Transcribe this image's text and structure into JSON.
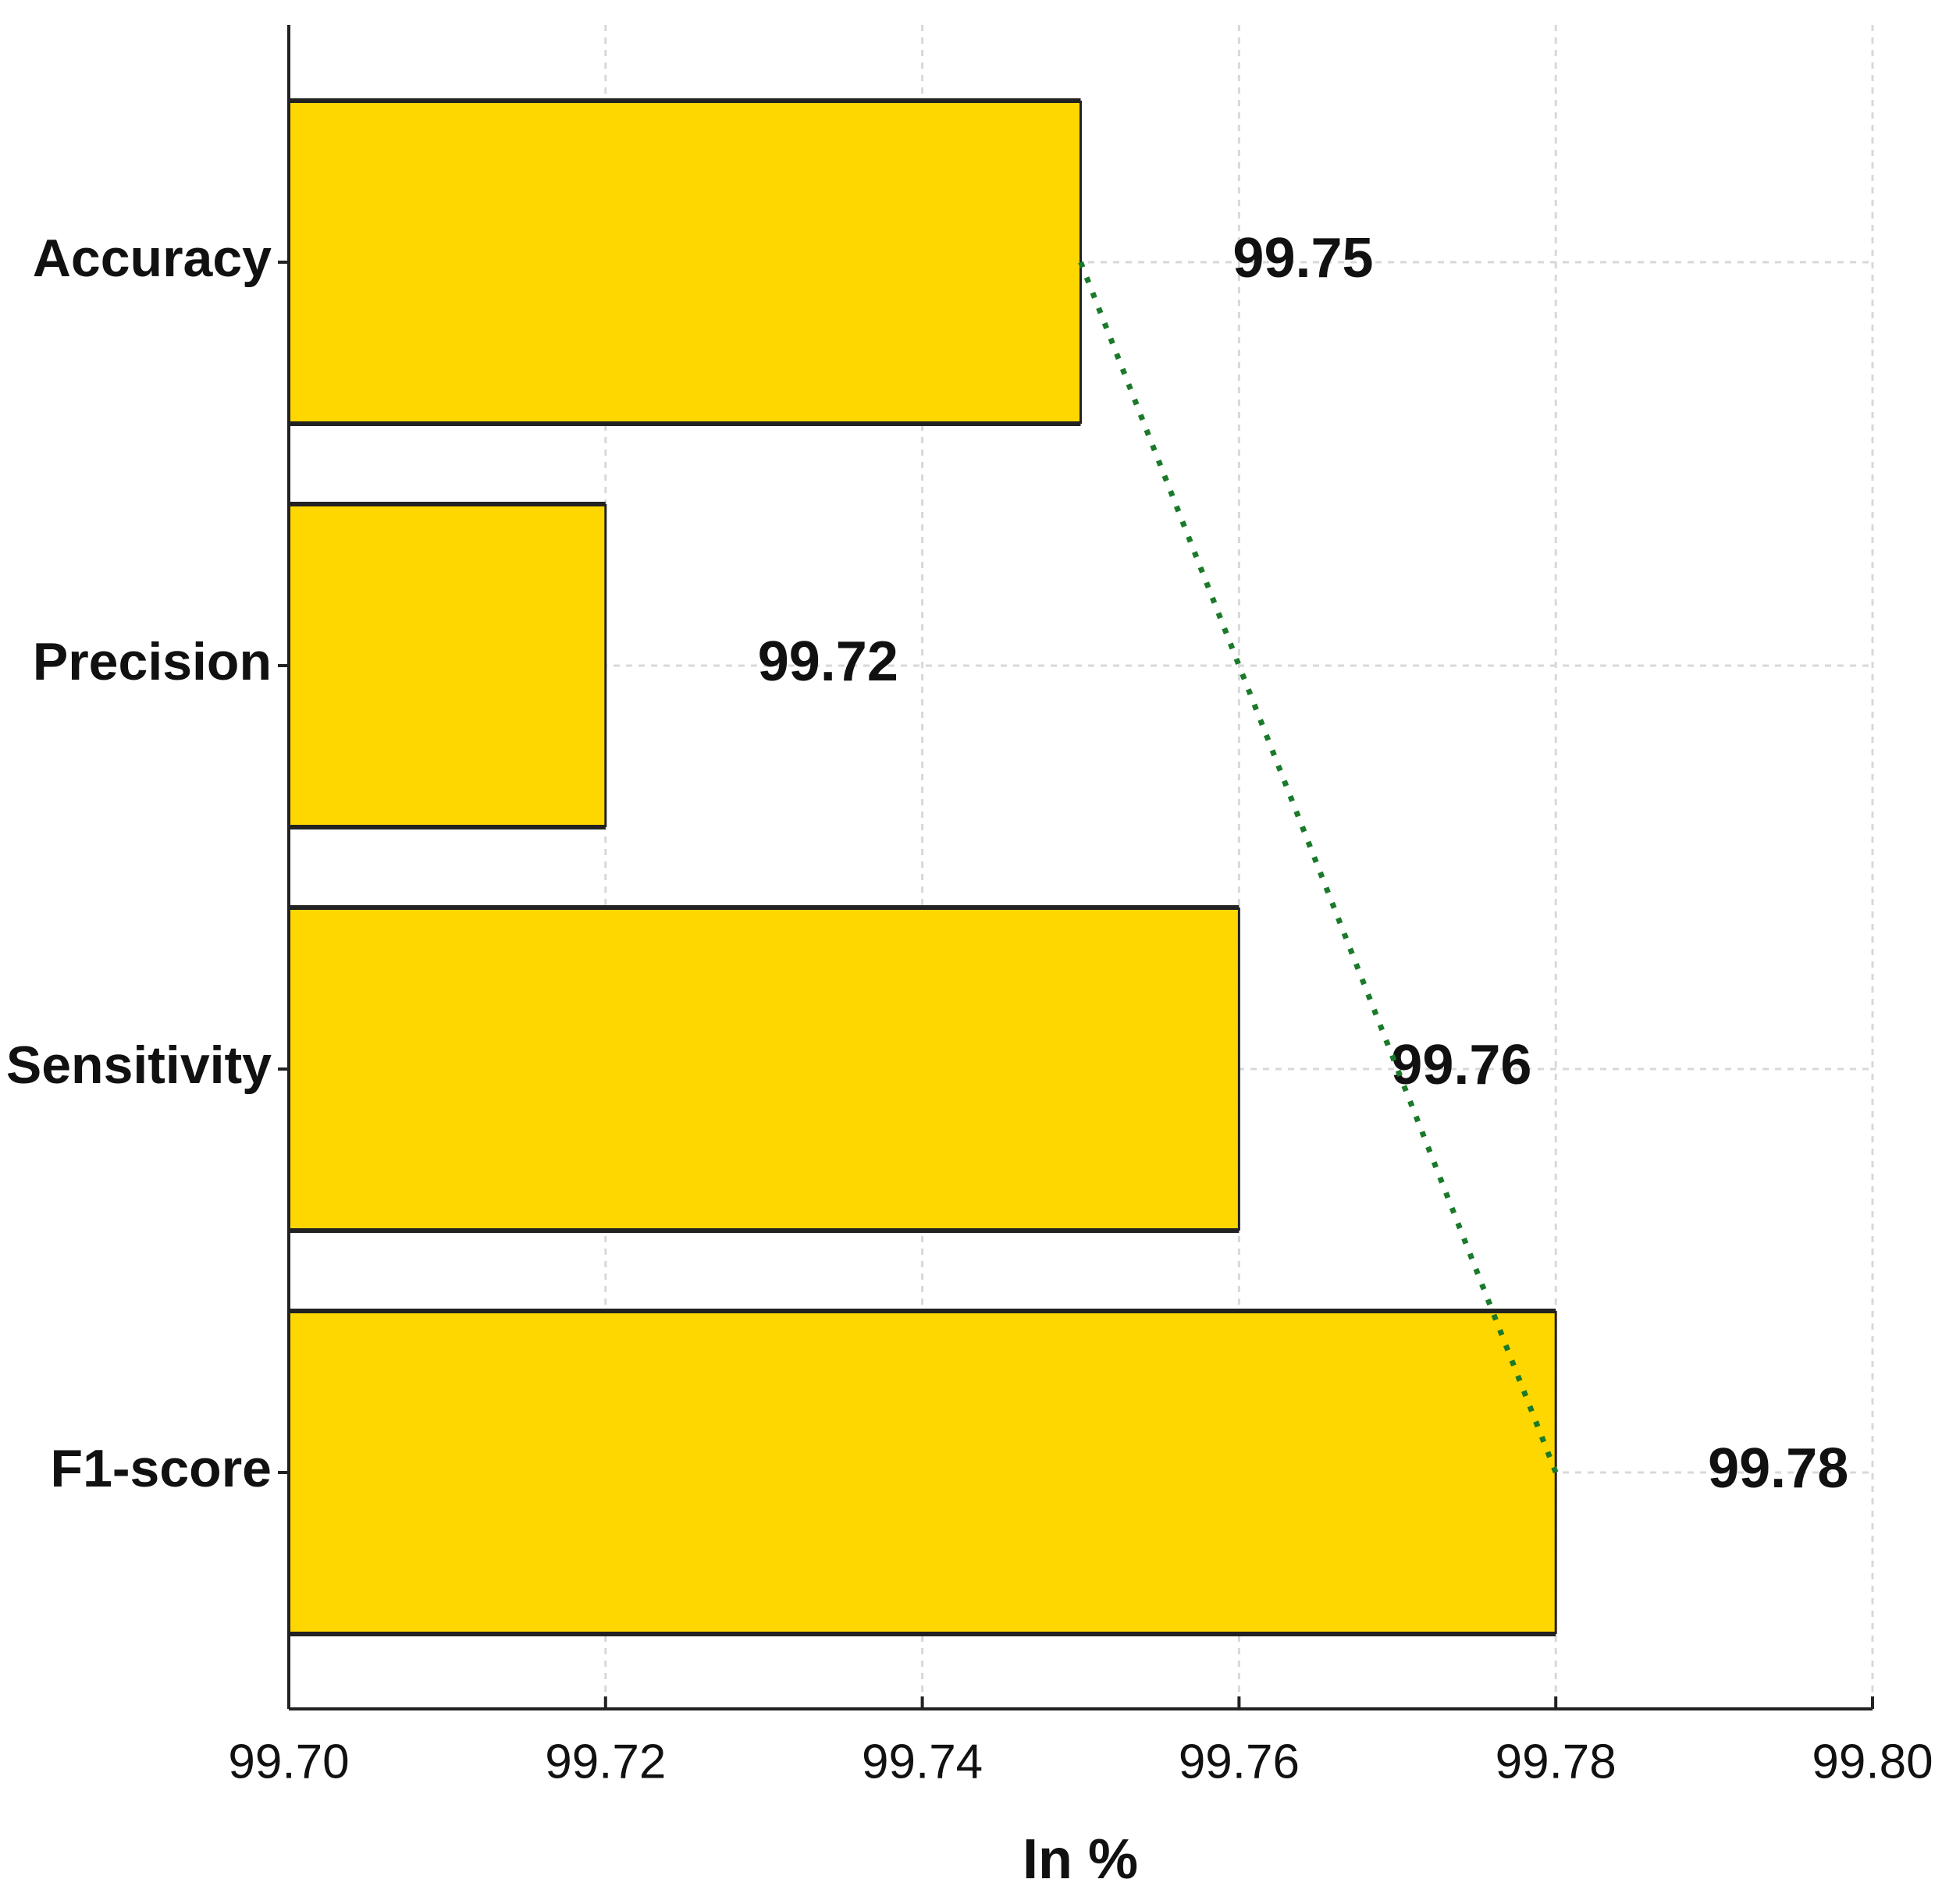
{
  "chart_data": {
    "type": "barh",
    "categories": [
      "Accuracy",
      "Precision",
      "Sensitivity",
      "F1-score"
    ],
    "values": [
      99.75,
      99.72,
      99.76,
      99.78
    ],
    "color": "#ffd700",
    "xlabel": "In %",
    "xlim": [
      99.7,
      99.8
    ],
    "xticks": [
      {
        "value": 99.7,
        "label": "99.70"
      },
      {
        "value": 99.72,
        "label": "99.72"
      },
      {
        "value": 99.74,
        "label": "99.74"
      },
      {
        "value": 99.76,
        "label": "99.76"
      },
      {
        "value": 99.78,
        "label": "99.78"
      },
      {
        "value": 99.8,
        "label": "99.80"
      }
    ],
    "grid": true,
    "trend_color": "#1a7a2a"
  }
}
